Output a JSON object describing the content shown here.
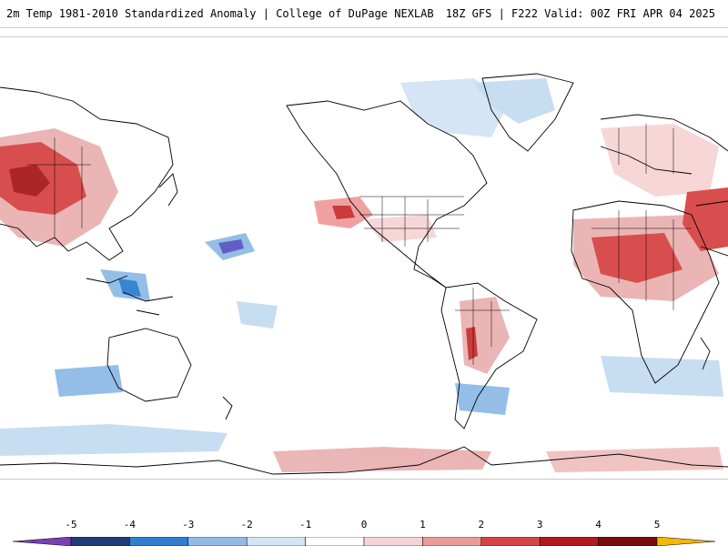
{
  "header": {
    "title_left": "2m Temp 1981-2010 Standardized Anomaly | College of DuPage NEXLAB",
    "title_right": "18Z GFS | F222 Valid: 00Z FRI APR 04 2025"
  },
  "colorbar": {
    "labels": [
      "-5",
      "-4",
      "-3",
      "-2",
      "-1",
      "0",
      "1",
      "2",
      "3",
      "4",
      "5"
    ],
    "bins": [
      {
        "color": "#7b3fb4"
      },
      {
        "color": "#1f3d7a"
      },
      {
        "color": "#2e7fcf"
      },
      {
        "color": "#8fbbe6"
      },
      {
        "color": "#d3e4f5"
      },
      {
        "color": "#ffffff"
      },
      {
        "color": "#f6d4d4"
      },
      {
        "color": "#e99a9a"
      },
      {
        "color": "#d64545"
      },
      {
        "color": "#b01a1a"
      },
      {
        "color": "#7a0c0c"
      },
      {
        "color": "#f5b800"
      }
    ]
  },
  "map": {
    "projection": "global cylindrical, Pacific-centered at left",
    "field": "2m temperature standardized anomaly",
    "outline_color": "#000000"
  }
}
